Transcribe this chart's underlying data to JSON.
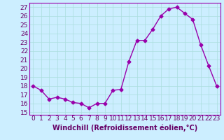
{
  "x": [
    0,
    1,
    2,
    3,
    4,
    5,
    6,
    7,
    8,
    9,
    10,
    11,
    12,
    13,
    14,
    15,
    16,
    17,
    18,
    19,
    20,
    21,
    22,
    23
  ],
  "y": [
    18,
    17.5,
    16.5,
    16.7,
    16.5,
    16.1,
    16.0,
    15.5,
    16.0,
    16.0,
    17.5,
    17.6,
    20.8,
    23.2,
    23.2,
    24.5,
    26.0,
    26.8,
    27.0,
    26.3,
    25.6,
    22.7,
    20.3,
    18.0
  ],
  "line_color": "#9900aa",
  "marker": "D",
  "marker_size": 2.5,
  "bg_color": "#cceeff",
  "grid_color": "#aadddd",
  "xlabel": "Windchill (Refroidissement éolien,°C)",
  "xlabel_fontsize": 7,
  "ylabel_ticks": [
    15,
    16,
    17,
    18,
    19,
    20,
    21,
    22,
    23,
    24,
    25,
    26,
    27
  ],
  "xlim": [
    -0.5,
    23.5
  ],
  "ylim": [
    14.7,
    27.5
  ],
  "tick_fontsize": 6.5,
  "line_width": 1.0
}
